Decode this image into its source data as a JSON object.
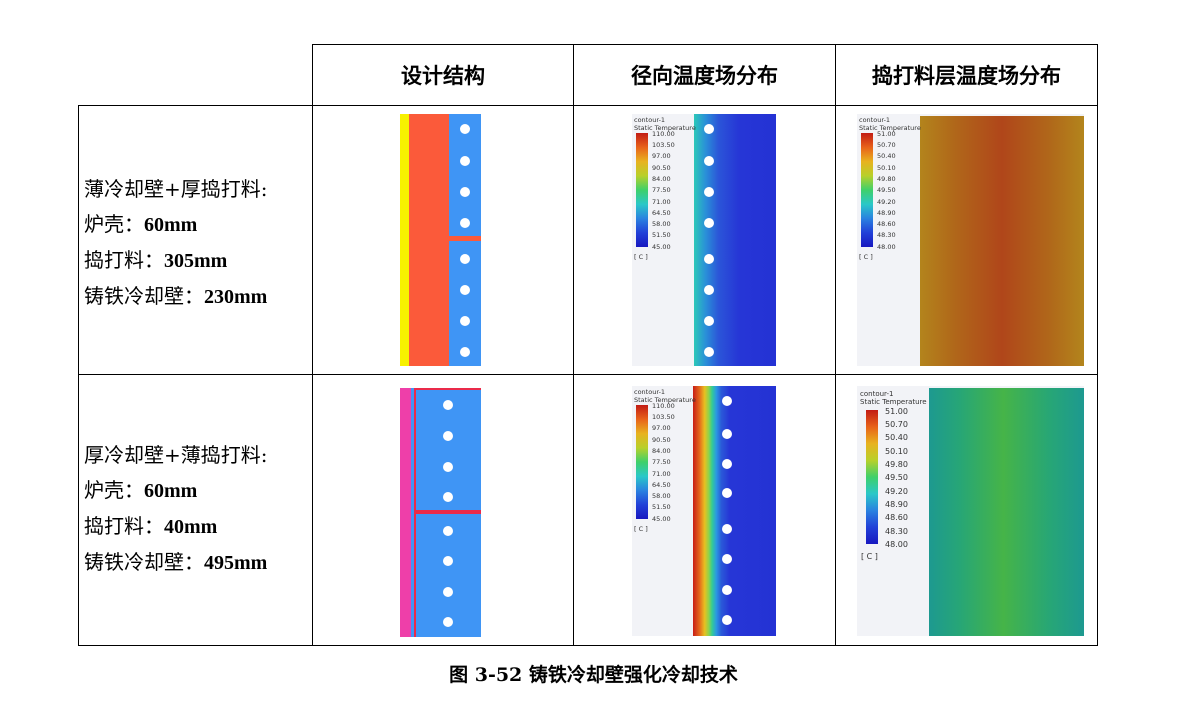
{
  "table": {
    "headers": [
      "设计结构",
      "径向温度场分布",
      "捣打料层温度场分布"
    ],
    "rows": [
      {
        "title": "薄冷却壁+厚捣打料:",
        "lines": [
          {
            "label": "炉壳：",
            "value": "60mm"
          },
          {
            "label": "捣打料：",
            "value": "305mm"
          },
          {
            "label": "铸铁冷却壁：",
            "value": "230mm"
          }
        ]
      },
      {
        "title": "厚冷却壁+薄捣打料:",
        "lines": [
          {
            "label": "炉壳：",
            "value": "60mm"
          },
          {
            "label": "捣打料：",
            "value": "40mm"
          },
          {
            "label": "铸铁冷却壁：",
            "value": "495mm"
          }
        ]
      }
    ]
  },
  "legend_radial": {
    "name": "contour-1",
    "quantity": "Static Temperature",
    "ticks": [
      "110.00",
      "103.50",
      "97.00",
      "90.50",
      "84.00",
      "77.50",
      "71.00",
      "64.50",
      "58.00",
      "51.50",
      "45.00"
    ],
    "unit": "[ C ]"
  },
  "legend_ramming": {
    "name": "contour-1",
    "quantity": "Static Temperature",
    "ticks": [
      "51.00",
      "50.70",
      "50.40",
      "50.10",
      "49.80",
      "49.50",
      "49.20",
      "48.90",
      "48.60",
      "48.30",
      "48.00"
    ],
    "unit": "[ C ]"
  },
  "caption": "图 3-52 铸铁冷却壁强化冷却技术",
  "colors": {
    "shell_yellow": "#f7f100",
    "ramming_orange": "#fb5a3a",
    "stave_blue": "#3f95f5",
    "shell_magenta": "#ee3fa9",
    "rim_red": "#ea2a4a",
    "contour_blue": "#2636d6"
  }
}
